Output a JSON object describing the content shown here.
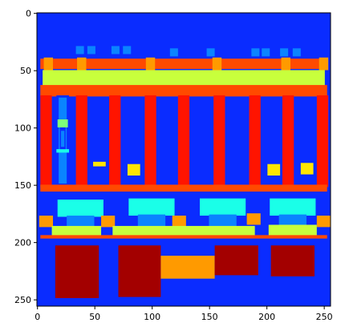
{
  "image": {
    "width_units": 256,
    "height_units": 256,
    "x_ticks": [
      "0",
      "50",
      "100",
      "150",
      "200",
      "250"
    ],
    "y_ticks": [
      "0",
      "50",
      "100",
      "150",
      "200",
      "250"
    ],
    "x_tick_values": [
      0,
      50,
      100,
      150,
      200,
      250
    ],
    "y_tick_values": [
      0,
      50,
      100,
      150,
      200,
      250
    ],
    "colors": {
      "background": "#0a2cff",
      "red": "#ff1400",
      "orange_red": "#ff4a00",
      "orange": "#ff9a00",
      "yellow_green": "#c8ff3c",
      "light_blue": "#0a84ff",
      "cyan": "#1affe8",
      "mint": "#7dff7a",
      "yellow": "#ffe600",
      "dark_red": "#a30000"
    }
  }
}
